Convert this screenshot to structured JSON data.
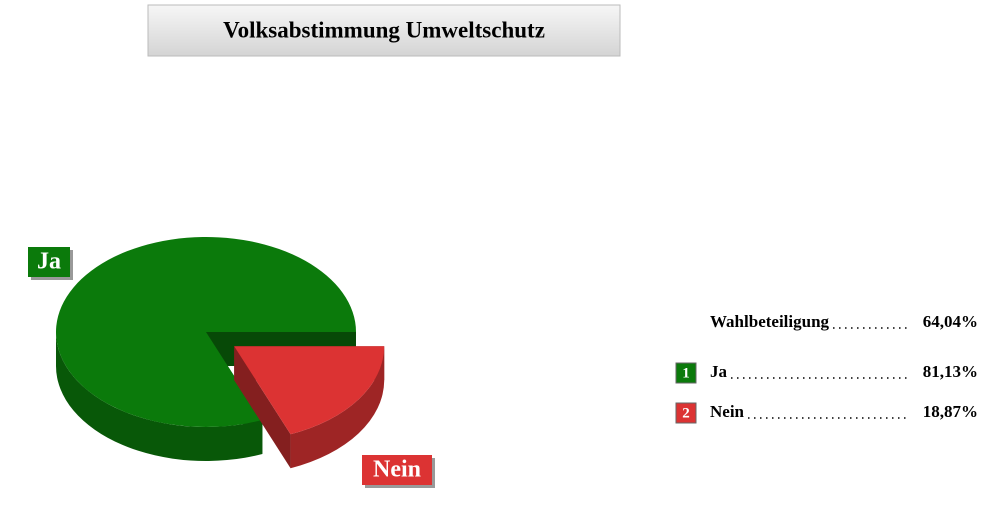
{
  "chart_data": {
    "type": "pie",
    "title": "Volksabstimmung Umweltschutz",
    "categories": [
      "Ja",
      "Nein"
    ],
    "values": [
      81.13,
      18.87
    ],
    "value_labels": [
      "81,13%",
      "18,87%"
    ],
    "colors": [
      "#0b7a0b",
      "#dc3333"
    ],
    "legend_numbers": [
      "1",
      "2"
    ],
    "turnout": {
      "label": "Wahlbeteiligung",
      "value": 64.04,
      "value_label": "64,04%"
    }
  }
}
